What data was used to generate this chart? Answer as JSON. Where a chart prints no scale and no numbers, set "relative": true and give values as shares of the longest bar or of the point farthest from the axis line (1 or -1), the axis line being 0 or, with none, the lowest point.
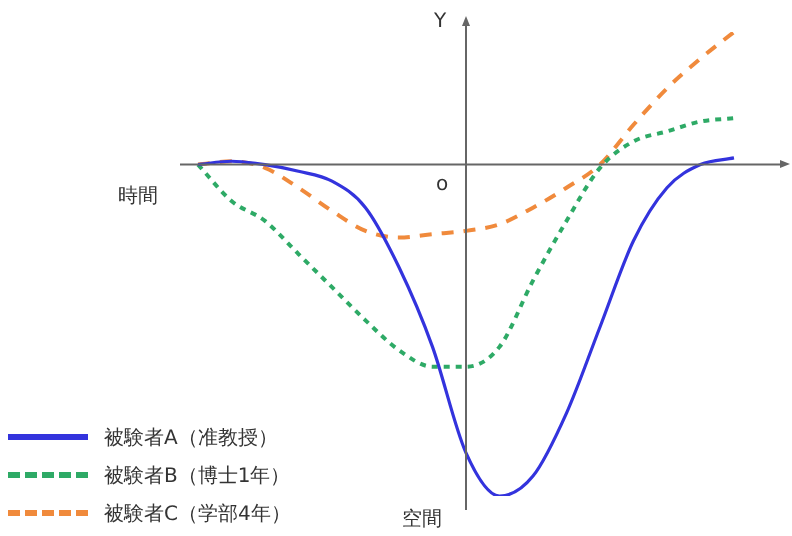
{
  "chart_data": {
    "type": "line",
    "relative": true,
    "xlabel": "時間",
    "ylabel": "Y",
    "annotations": [
      "o",
      "空間"
    ],
    "categories": [
      null,
      null,
      null,
      null,
      null,
      null,
      null,
      null,
      null,
      null,
      null,
      null,
      null,
      null,
      null,
      null,
      null
    ],
    "legend": "bottom left",
    "marker": "none",
    "series": [
      {
        "name": "被験者A（准教授）",
        "color": "#3333dd",
        "line_style": "solid",
        "values": [
          0,
          0.01,
          0,
          -0.02,
          -0.05,
          -0.13,
          -0.31,
          -0.55,
          -0.87,
          -1,
          -0.94,
          -0.75,
          -0.49,
          -0.23,
          -0.07,
          0,
          0.02
        ]
      },
      {
        "name": "被験者B（博士1年）",
        "color": "#2eaa66",
        "line_style": "dotted",
        "values": [
          0,
          -0.11,
          -0.17,
          -0.27,
          -0.37,
          -0.47,
          -0.56,
          -0.61,
          -0.61,
          -0.55,
          -0.35,
          -0.17,
          -0.01,
          0.07,
          0.1,
          0.13,
          0.14
        ]
      },
      {
        "name": "被験者C（学部4年）",
        "color": "#f08a3c",
        "line_style": "dashed",
        "values": [
          0,
          0.01,
          -0.01,
          -0.07,
          -0.14,
          -0.2,
          -0.22,
          -0.21,
          -0.2,
          -0.18,
          -0.13,
          -0.07,
          0,
          0.12,
          0.23,
          0.32,
          0.4
        ]
      }
    ]
  }
}
